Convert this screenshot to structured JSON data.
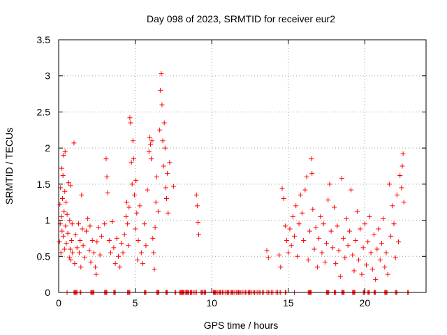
{
  "chart_data": {
    "type": "scatter",
    "title": "Day 098 of 2023, SRMTID for receiver eur2",
    "xlabel": "GPS time / hours",
    "ylabel": "SRMTID / TECUs",
    "xlim": [
      0,
      24
    ],
    "ylim": [
      0,
      3.5
    ],
    "xticks": [
      0,
      5,
      10,
      15,
      20
    ],
    "yticks": [
      0,
      0.5,
      1,
      1.5,
      2,
      2.5,
      3,
      3.5
    ],
    "ytick_labels": [
      "0",
      "0.5",
      "1",
      "1.5",
      "2",
      "2.5",
      "3",
      "3.5"
    ],
    "grid": true,
    "marker": "+",
    "color": "#ff0000",
    "series": [
      {
        "name": "eur2",
        "points": [
          [
            0.05,
            0.7
          ],
          [
            0.08,
            1.22
          ],
          [
            0.1,
            0.95
          ],
          [
            0.12,
            1.45
          ],
          [
            0.15,
            0.55
          ],
          [
            0.18,
            1.05
          ],
          [
            0.2,
            1.72
          ],
          [
            0.22,
            0.85
          ],
          [
            0.25,
            1.3
          ],
          [
            0.28,
            1.62
          ],
          [
            0.3,
            0.78
          ],
          [
            0.32,
            1.9
          ],
          [
            0.35,
            1.12
          ],
          [
            0.38,
            0.6
          ],
          [
            0.4,
            1.4
          ],
          [
            0.42,
            1.95
          ],
          [
            0.45,
            0.92
          ],
          [
            0.48,
            1.25
          ],
          [
            0.5,
            0.68
          ],
          [
            0.55,
            1.08
          ],
          [
            0.6,
            0.82
          ],
          [
            0.65,
            1.52
          ],
          [
            0.7,
            0.48
          ],
          [
            0.72,
            1.0
          ],
          [
            0.75,
            0.6
          ],
          [
            0.78,
            1.48
          ],
          [
            0.8,
            0.45
          ],
          [
            0.85,
            0.72
          ],
          [
            0.88,
            0.95
          ],
          [
            0.9,
            0.55
          ],
          [
            1.0,
            2.07
          ],
          [
            1.05,
            0.4
          ],
          [
            1.1,
            0.8
          ],
          [
            1.2,
            0.62
          ],
          [
            1.3,
            0.95
          ],
          [
            1.35,
            0.55
          ],
          [
            1.4,
            0.72
          ],
          [
            1.45,
            0.35
          ],
          [
            1.5,
            1.35
          ],
          [
            1.55,
            0.88
          ],
          [
            1.6,
            0.65
          ],
          [
            1.7,
            0.48
          ],
          [
            1.8,
            0.85
          ],
          [
            1.9,
            1.02
          ],
          [
            2.0,
            0.58
          ],
          [
            2.05,
            0.92
          ],
          [
            2.1,
            0.42
          ],
          [
            2.2,
            0.72
          ],
          [
            2.3,
            0.55
          ],
          [
            2.4,
            0.35
          ],
          [
            2.45,
            0.25
          ],
          [
            2.5,
            0.7
          ],
          [
            2.6,
            0.9
          ],
          [
            2.7,
            0.52
          ],
          [
            2.8,
            0.78
          ],
          [
            3.0,
            0.95
          ],
          [
            3.1,
            1.85
          ],
          [
            3.15,
            1.6
          ],
          [
            3.2,
            1.38
          ],
          [
            3.3,
            0.72
          ],
          [
            3.4,
            0.55
          ],
          [
            3.5,
            0.98
          ],
          [
            3.6,
            0.62
          ],
          [
            3.7,
            0.4
          ],
          [
            3.8,
            0.75
          ],
          [
            3.9,
            0.5
          ],
          [
            4.0,
            0.35
          ],
          [
            4.1,
            0.68
          ],
          [
            4.2,
            0.55
          ],
          [
            4.3,
            0.8
          ],
          [
            4.4,
            1.05
          ],
          [
            4.45,
            1.25
          ],
          [
            4.5,
            0.95
          ],
          [
            4.55,
            0.65
          ],
          [
            4.6,
            1.18
          ],
          [
            4.65,
            2.42
          ],
          [
            4.7,
            2.35
          ],
          [
            4.75,
            1.8
          ],
          [
            4.8,
            1.5
          ],
          [
            4.85,
            2.1
          ],
          [
            4.9,
            1.85
          ],
          [
            4.95,
            1.35
          ],
          [
            5.0,
            0.88
          ],
          [
            5.05,
            1.55
          ],
          [
            5.1,
            1.1
          ],
          [
            5.15,
            0.45
          ],
          [
            5.2,
            0.72
          ],
          [
            5.3,
            1.2
          ],
          [
            5.4,
            0.55
          ],
          [
            5.5,
            0.4
          ],
          [
            5.6,
            0.95
          ],
          [
            5.7,
            0.65
          ],
          [
            5.8,
            1.42
          ],
          [
            5.9,
            1.95
          ],
          [
            5.95,
            2.15
          ],
          [
            6.0,
            2.05
          ],
          [
            6.05,
            1.85
          ],
          [
            6.1,
            2.1
          ],
          [
            6.15,
            0.75
          ],
          [
            6.2,
            0.55
          ],
          [
            6.25,
            0.32
          ],
          [
            6.3,
            0.9
          ],
          [
            6.35,
            1.25
          ],
          [
            6.4,
            1.6
          ],
          [
            6.5,
            1.12
          ],
          [
            6.6,
            2.25
          ],
          [
            6.65,
            2.8
          ],
          [
            6.7,
            3.03
          ],
          [
            6.75,
            2.6
          ],
          [
            6.8,
            2.1
          ],
          [
            6.85,
            1.75
          ],
          [
            6.9,
            2.35
          ],
          [
            6.95,
            2.0
          ],
          [
            7.0,
            1.45
          ],
          [
            7.05,
            1.3
          ],
          [
            7.1,
            1.65
          ],
          [
            7.15,
            1.1
          ],
          [
            7.25,
            1.8
          ],
          [
            7.5,
            1.47
          ],
          [
            9.0,
            1.35
          ],
          [
            9.05,
            1.2
          ],
          [
            9.1,
            0.97
          ],
          [
            9.15,
            0.8
          ],
          [
            13.6,
            0.58
          ],
          [
            13.7,
            0.48
          ],
          [
            14.4,
            0.52
          ],
          [
            14.5,
            0.35
          ],
          [
            14.6,
            1.44
          ],
          [
            14.7,
            1.3
          ],
          [
            14.8,
            0.92
          ],
          [
            14.9,
            0.72
          ],
          [
            15.0,
            0.55
          ],
          [
            15.1,
            0.88
          ],
          [
            15.2,
            0.65
          ],
          [
            15.3,
            1.05
          ],
          [
            15.4,
            0.78
          ],
          [
            15.5,
            1.2
          ],
          [
            15.6,
            0.5
          ],
          [
            15.7,
            0.95
          ],
          [
            15.8,
            1.35
          ],
          [
            15.9,
            1.1
          ],
          [
            16.0,
            0.72
          ],
          [
            16.1,
            1.42
          ],
          [
            16.2,
            1.6
          ],
          [
            16.3,
            0.45
          ],
          [
            16.4,
            0.85
          ],
          [
            16.5,
            1.85
          ],
          [
            16.55,
            1.65
          ],
          [
            16.6,
            1.15
          ],
          [
            16.7,
            0.6
          ],
          [
            16.8,
            0.9
          ],
          [
            16.9,
            0.35
          ],
          [
            17.0,
            0.75
          ],
          [
            17.1,
            1.05
          ],
          [
            17.2,
            0.55
          ],
          [
            17.3,
            0.95
          ],
          [
            17.4,
            0.42
          ],
          [
            17.5,
            0.68
          ],
          [
            17.6,
            1.28
          ],
          [
            17.7,
            1.5
          ],
          [
            17.8,
            0.85
          ],
          [
            17.9,
            0.62
          ],
          [
            18.0,
            1.18
          ],
          [
            18.1,
            0.4
          ],
          [
            18.2,
            0.92
          ],
          [
            18.3,
            0.58
          ],
          [
            18.4,
            0.22
          ],
          [
            18.5,
            1.58
          ],
          [
            18.6,
            0.75
          ],
          [
            18.7,
            0.48
          ],
          [
            18.8,
            1.02
          ],
          [
            18.9,
            0.65
          ],
          [
            19.0,
            0.85
          ],
          [
            19.1,
            1.42
          ],
          [
            19.2,
            0.52
          ],
          [
            19.3,
            0.3
          ],
          [
            19.4,
            0.72
          ],
          [
            19.5,
            1.12
          ],
          [
            19.6,
            0.45
          ],
          [
            19.7,
            0.88
          ],
          [
            19.8,
            0.25
          ],
          [
            19.9,
            0.62
          ],
          [
            20.0,
            0.95
          ],
          [
            20.1,
            0.38
          ],
          [
            20.2,
            0.7
          ],
          [
            20.3,
            1.05
          ],
          [
            20.4,
            0.55
          ],
          [
            20.5,
            0.32
          ],
          [
            20.6,
            0.8
          ],
          [
            20.7,
            0.18
          ],
          [
            20.8,
            0.6
          ],
          [
            20.9,
            0.88
          ],
          [
            21.0,
            0.45
          ],
          [
            21.1,
            0.68
          ],
          [
            21.2,
            1.02
          ],
          [
            21.3,
            0.35
          ],
          [
            21.4,
            0.55
          ],
          [
            21.5,
            0.25
          ],
          [
            21.6,
            1.5
          ],
          [
            21.7,
            0.78
          ],
          [
            21.8,
            1.2
          ],
          [
            21.9,
            0.95
          ],
          [
            22.0,
            0.48
          ],
          [
            22.1,
            1.35
          ],
          [
            22.2,
            0.7
          ],
          [
            22.3,
            1.62
          ],
          [
            22.4,
            1.45
          ],
          [
            22.45,
            1.75
          ],
          [
            22.5,
            1.92
          ],
          [
            22.55,
            1.25
          ]
        ],
        "zeros": [
          0.55,
          1.0,
          1.05,
          1.1,
          1.15,
          1.2,
          1.4,
          1.45,
          2.1,
          2.15,
          2.2,
          2.25,
          2.3,
          3.0,
          3.05,
          3.1,
          3.15,
          3.6,
          3.65,
          3.7,
          4.5,
          4.55,
          4.6,
          4.65,
          5.6,
          5.65,
          5.7,
          6.4,
          6.45,
          6.5,
          6.55,
          7.0,
          7.05,
          7.1,
          7.6,
          7.65,
          7.9,
          7.95,
          8.0,
          8.05,
          8.1,
          8.15,
          8.2,
          8.3,
          8.35,
          8.4,
          8.45,
          8.5,
          8.6,
          8.65,
          8.7,
          8.8,
          8.9,
          9.0,
          9.3,
          9.35,
          9.4,
          9.5,
          9.55,
          9.6,
          10.1,
          10.15,
          10.2,
          10.25,
          10.3,
          10.4,
          10.5,
          10.55,
          10.6,
          10.7,
          10.8,
          10.9,
          11.0,
          11.05,
          11.1,
          11.2,
          11.3,
          11.35,
          11.4,
          11.5,
          11.6,
          11.7,
          11.75,
          11.8,
          11.9,
          12.0,
          12.1,
          12.2,
          12.3,
          12.4,
          12.45,
          12.5,
          12.6,
          12.7,
          12.8,
          12.9,
          13.0,
          13.1,
          13.2,
          13.3,
          13.4,
          13.6,
          13.7,
          13.8,
          13.9,
          14.0,
          14.2,
          14.3,
          14.4,
          14.5,
          14.8,
          14.85,
          15.4,
          16.3,
          16.35,
          16.4,
          16.45,
          16.5,
          17.5,
          17.55,
          17.6,
          17.65,
          18.0,
          18.05,
          18.1,
          18.5,
          18.55,
          18.6,
          18.65,
          19.2,
          19.25,
          19.3,
          19.35,
          19.9,
          19.95,
          20.0,
          20.2,
          20.25,
          20.3,
          20.6,
          20.65,
          20.7,
          21.3,
          21.35,
          21.4,
          21.45,
          22.0,
          22.05,
          22.1,
          22.8,
          22.85
        ]
      }
    ]
  }
}
